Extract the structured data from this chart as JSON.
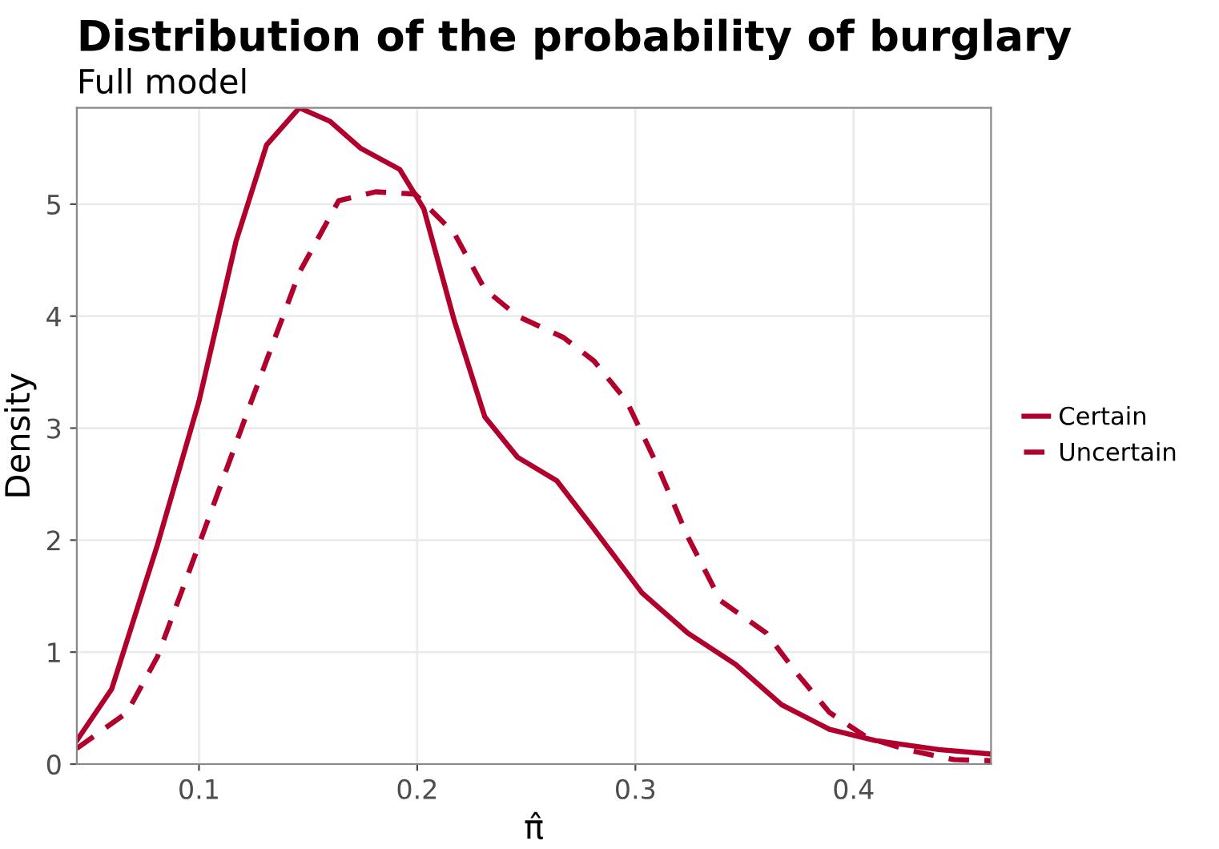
{
  "chart_data": {
    "type": "line",
    "title": "Distribution of the probability of burglary",
    "subtitle": "Full model",
    "xlabel": "π̂",
    "ylabel": "Density",
    "xlim": [
      0.044,
      0.463
    ],
    "ylim": [
      0,
      5.86
    ],
    "xticks": [
      0.1,
      0.2,
      0.3,
      0.4
    ],
    "yticks": [
      0,
      1,
      2,
      3,
      4,
      5
    ],
    "grid": true,
    "legend": "right",
    "series": [
      {
        "name": "Certain",
        "color": "#b2002d",
        "line_style": "solid",
        "x": [
          0.044,
          0.06,
          0.081,
          0.1,
          0.117,
          0.131,
          0.146,
          0.16,
          0.174,
          0.192,
          0.203,
          0.217,
          0.231,
          0.246,
          0.264,
          0.281,
          0.303,
          0.324,
          0.346,
          0.367,
          0.389,
          0.41,
          0.439,
          0.463
        ],
        "values": [
          0.21,
          0.67,
          1.96,
          3.24,
          4.67,
          5.53,
          5.86,
          5.74,
          5.5,
          5.31,
          4.96,
          3.96,
          3.1,
          2.74,
          2.53,
          2.1,
          1.53,
          1.17,
          0.89,
          0.53,
          0.31,
          0.21,
          0.13,
          0.09
        ]
      },
      {
        "name": "Uncertain",
        "color": "#b2002d",
        "line_style": "dashed",
        "x": [
          0.044,
          0.067,
          0.081,
          0.1,
          0.124,
          0.146,
          0.164,
          0.181,
          0.199,
          0.217,
          0.231,
          0.246,
          0.267,
          0.281,
          0.296,
          0.31,
          0.324,
          0.339,
          0.36,
          0.374,
          0.389,
          0.406,
          0.424,
          0.446,
          0.463
        ],
        "values": [
          0.14,
          0.46,
          0.96,
          1.96,
          3.24,
          4.39,
          5.03,
          5.11,
          5.09,
          4.74,
          4.24,
          4.0,
          3.81,
          3.6,
          3.24,
          2.67,
          2.03,
          1.46,
          1.17,
          0.81,
          0.46,
          0.24,
          0.13,
          0.04,
          0.03
        ]
      }
    ]
  }
}
